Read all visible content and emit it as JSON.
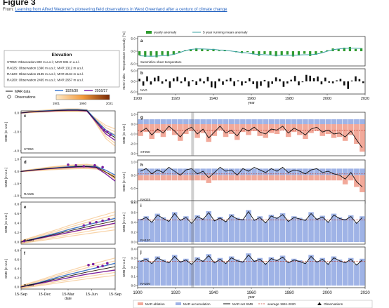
{
  "page": {
    "figure_title": "Figure 3",
    "from_prefix": "From:",
    "from_link": "Learning from Alfred Wegener's pioneering field observations in West Greenland after a century of climate change"
  },
  "elevation_box": {
    "title": "Elevation",
    "lines": [
      "ST050: Observation 800 m a.s.l.; MAR 931 m a.s.l.",
      "RA025: Observation 1390 m a.s.l.; MAR 1312 m a.s.l.",
      "RA120: Observation 2135 m a.s.l.; MAR 2134 m a.s.l.",
      "RA200: Observation 2465 m a.s.l.; MAR 2657 m a.s.l."
    ]
  },
  "left_legend": {
    "mar_label": "MAR data",
    "obs_label": "Observations",
    "period1": "1929/30",
    "period2": "2016/17",
    "cbar_ticks": [
      "1901",
      "1960",
      "2021"
    ]
  },
  "bottom_legend": {
    "ablation": "MAR ablation",
    "accumulation": "MAR accumulation",
    "net_smb": "MAR net SMB",
    "average": "average 1991-2020",
    "observations": "Observations"
  },
  "colors": {
    "green": "#2e9b2e",
    "black": "#111111",
    "red_fill": "#f2a99a",
    "blue_fill": "#9fb3e6",
    "orange": "#f0a040",
    "purple": "#7a1fa0",
    "blue_line": "#3a78d0"
  },
  "chart_data": [
    {
      "panel": "a",
      "type": "bar",
      "ylabel": "Temperature Anomaly [°C]",
      "legend": [
        "yearly anomaly",
        "5 year running mean anomaly"
      ],
      "annotation": "Summit/ice sheet temperature",
      "xlim": [
        1900,
        2020
      ],
      "ylim": [
        -5.0,
        5.0
      ],
      "yticks": [
        "5.0",
        "0.0",
        "-5.0"
      ],
      "x": [
        1901,
        1904,
        1907,
        1910,
        1913,
        1916,
        1919,
        1922,
        1925,
        1928,
        1931,
        1934,
        1937,
        1940,
        1943,
        1946,
        1949,
        1952,
        1955,
        1958,
        1961,
        1964,
        1967,
        1970,
        1973,
        1976,
        1979,
        1982,
        1985,
        1988,
        1991,
        1994,
        1997,
        2000,
        2003,
        2006,
        2009,
        2012,
        2015,
        2018
      ],
      "values": [
        -1.6,
        -2.2,
        -1.8,
        -2.4,
        -1.5,
        -2.0,
        -1.4,
        -0.6,
        0.4,
        0.8,
        1.2,
        1.0,
        0.6,
        0.9,
        0.3,
        0.5,
        0.2,
        -0.4,
        -0.8,
        -0.3,
        -1.2,
        -1.8,
        -1.1,
        -1.5,
        -2.0,
        -1.6,
        -1.3,
        -2.1,
        -1.7,
        -1.0,
        -1.9,
        -1.4,
        -0.5,
        0.4,
        1.1,
        0.9,
        1.4,
        1.7,
        0.9,
        1.2
      ],
      "running_mean": [
        -1.8,
        -1.9,
        -2.0,
        -1.9,
        -1.8,
        -1.6,
        -1.3,
        -0.6,
        0.2,
        0.7,
        0.9,
        0.9,
        0.8,
        0.7,
        0.5,
        0.4,
        0.1,
        -0.2,
        -0.5,
        -0.7,
        -1.1,
        -1.3,
        -1.4,
        -1.5,
        -1.6,
        -1.6,
        -1.6,
        -1.6,
        -1.5,
        -1.4,
        -1.4,
        -1.2,
        -0.7,
        0.0,
        0.6,
        0.9,
        1.1,
        1.2,
        1.2,
        1.1
      ]
    },
    {
      "panel": "b",
      "type": "bar",
      "ylabel": "NAO index",
      "annotation": "NAO",
      "xlim": [
        1900,
        2020
      ],
      "ylim": [
        -5.0,
        5.0
      ],
      "yticks": [
        "5.0",
        "0.0",
        "-5.0"
      ],
      "xticks": [
        "1900",
        "1920",
        "1940",
        "1960",
        "1980",
        "2000",
        "2020"
      ],
      "xlabel": "year",
      "x": [
        1901,
        1903,
        1905,
        1907,
        1909,
        1911,
        1913,
        1915,
        1917,
        1919,
        1921,
        1923,
        1925,
        1927,
        1929,
        1931,
        1933,
        1935,
        1937,
        1939,
        1941,
        1943,
        1945,
        1947,
        1949,
        1951,
        1953,
        1955,
        1957,
        1959,
        1961,
        1963,
        1965,
        1967,
        1969,
        1971,
        1973,
        1975,
        1977,
        1979,
        1981,
        1983,
        1985,
        1987,
        1989,
        1991,
        1993,
        1995,
        1997,
        1999,
        2001,
        2003,
        2005,
        2007,
        2009,
        2011,
        2013,
        2015,
        2017,
        2019
      ],
      "values": [
        1.2,
        -2.0,
        2.4,
        -1.5,
        1.8,
        2.6,
        -1.1,
        0.9,
        -3.0,
        1.5,
        2.2,
        -0.8,
        1.9,
        -2.4,
        0.6,
        -1.7,
        1.4,
        -0.9,
        2.1,
        -2.8,
        -3.2,
        1.3,
        -1.6,
        0.8,
        1.7,
        -2.2,
        0.5,
        -1.9,
        -0.7,
        1.6,
        -1.3,
        -3.4,
        -2.1,
        0.7,
        -2.9,
        -1.2,
        1.9,
        1.1,
        -2.6,
        -1.0,
        0.8,
        2.6,
        -1.8,
        -0.4,
        3.1,
        2.7,
        1.6,
        2.3,
        -1.4,
        1.8,
        -0.6,
        -0.9,
        0.5,
        1.2,
        -1.9,
        -3.6,
        0.4,
        2.4,
        1.1,
        -0.8
      ]
    },
    {
      "panel": "c",
      "type": "line",
      "station": "ST050",
      "ylabel": "SMB [m w.e.]",
      "ylim": [
        -4.0,
        0.0
      ],
      "yticks": [
        "0.0",
        "-2.0",
        "-4.0"
      ],
      "days": [
        0,
        30,
        60,
        90,
        120,
        150,
        180,
        210,
        240,
        270,
        300
      ],
      "series": [
        {
          "name": "1929/30",
          "values": [
            0,
            0.1,
            0.2,
            0.25,
            0.3,
            0.35,
            0.35,
            0.3,
            -0.8,
            -1.8,
            -2.4
          ]
        },
        {
          "name": "2016/17",
          "values": [
            0,
            0.1,
            0.15,
            0.2,
            0.25,
            0.28,
            0.28,
            0.2,
            -1.0,
            -2.2,
            -2.9
          ]
        },
        {
          "name": "MAR data",
          "values": [
            0,
            0.1,
            0.18,
            0.22,
            0.27,
            0.3,
            0.3,
            0.25,
            -0.9,
            -2.0,
            -2.6
          ]
        }
      ],
      "observations": [
        [
          255,
          -1.5
        ],
        [
          265,
          -1.8
        ],
        [
          275,
          -2.0
        ],
        [
          285,
          -2.3
        ]
      ]
    },
    {
      "panel": "d",
      "type": "line",
      "station": "RA025",
      "ylabel": "SMB [m w.e.]",
      "ylim": [
        -2.0,
        1.0
      ],
      "yticks": [
        "1.0",
        "0.0",
        "-1.0",
        "-2.0"
      ],
      "days": [
        0,
        30,
        60,
        90,
        120,
        150,
        180,
        210,
        240,
        270,
        300
      ],
      "series": [
        {
          "name": "1929/30",
          "values": [
            0,
            0.1,
            0.18,
            0.25,
            0.32,
            0.38,
            0.42,
            0.44,
            0.4,
            0.1,
            -0.3
          ]
        },
        {
          "name": "2016/17",
          "values": [
            0,
            0.08,
            0.15,
            0.22,
            0.28,
            0.32,
            0.36,
            0.38,
            0.3,
            -0.2,
            -0.8
          ]
        },
        {
          "name": "MAR data",
          "values": [
            0,
            0.09,
            0.17,
            0.24,
            0.3,
            0.35,
            0.39,
            0.41,
            0.35,
            -0.05,
            -0.5
          ]
        }
      ],
      "observations": [
        [
          150,
          0.55
        ],
        [
          175,
          0.5
        ],
        [
          200,
          0.42
        ],
        [
          235,
          0.5
        ],
        [
          260,
          0.35
        ]
      ]
    },
    {
      "panel": "e",
      "type": "line",
      "station": "RA120",
      "ylabel": "SMB [m w.e.]",
      "ylim": [
        0.0,
        0.8
      ],
      "yticks": [
        "0.8",
        "0.6",
        "0.4",
        "0.2",
        "0.0"
      ],
      "days": [
        0,
        30,
        60,
        90,
        120,
        150,
        180,
        210,
        240,
        270,
        300
      ],
      "series": [
        {
          "name": "1929/30",
          "values": [
            0,
            0.05,
            0.1,
            0.15,
            0.2,
            0.26,
            0.31,
            0.36,
            0.41,
            0.45,
            0.5
          ]
        },
        {
          "name": "2016/17",
          "values": [
            0,
            0.04,
            0.08,
            0.12,
            0.16,
            0.2,
            0.24,
            0.28,
            0.32,
            0.36,
            0.4
          ]
        },
        {
          "name": "MAR data",
          "values": [
            0,
            0.045,
            0.09,
            0.135,
            0.18,
            0.23,
            0.275,
            0.32,
            0.365,
            0.405,
            0.45
          ]
        }
      ],
      "observations": [
        [
          10,
          0.02
        ],
        [
          200,
          0.35
        ],
        [
          220,
          0.4
        ],
        [
          240,
          0.42
        ],
        [
          260,
          0.45
        ],
        [
          280,
          0.48
        ]
      ]
    },
    {
      "panel": "f",
      "type": "line",
      "station": "RA200",
      "ylabel": "SMB [m w.e.]",
      "ylim": [
        0.0,
        0.8
      ],
      "yticks": [
        "0.8",
        "0.6",
        "0.4",
        "0.2",
        "0.0"
      ],
      "xticks": [
        "15-Sep",
        "15-Dec",
        "15-Mar",
        "15-Jun",
        "15-Sep"
      ],
      "xlabel": "date",
      "days": [
        0,
        30,
        60,
        90,
        120,
        150,
        180,
        210,
        240,
        270,
        300
      ],
      "series": [
        {
          "name": "1929/30",
          "values": [
            0,
            0.05,
            0.1,
            0.16,
            0.22,
            0.27,
            0.32,
            0.37,
            0.42,
            0.47,
            0.52
          ]
        },
        {
          "name": "2016/17",
          "values": [
            0,
            0.04,
            0.08,
            0.12,
            0.16,
            0.2,
            0.24,
            0.28,
            0.31,
            0.34,
            0.37
          ]
        },
        {
          "name": "MAR data",
          "values": [
            0,
            0.045,
            0.09,
            0.14,
            0.19,
            0.235,
            0.28,
            0.325,
            0.365,
            0.405,
            0.445
          ]
        }
      ],
      "observations": [
        [
          215,
          0.48
        ],
        [
          230,
          0.5
        ],
        [
          245,
          0.44
        ],
        [
          260,
          0.46
        ],
        [
          275,
          0.52
        ]
      ]
    },
    {
      "panel": "g",
      "type": "bar",
      "station": "ST050",
      "ylabel": "SMB [m w.e.]",
      "xlim": [
        1900,
        2020
      ],
      "ylim": [
        -3.0,
        1.0
      ],
      "yticks": [
        "1.0",
        "0.0",
        "-1.0",
        "-2.0",
        "-3.0"
      ],
      "average": -0.6,
      "net": [
        -0.8,
        -0.4,
        -1.1,
        -0.5,
        -0.9,
        -0.2,
        -0.7,
        -1.3,
        -0.6,
        -0.3,
        -1.0,
        -0.5,
        -1.4,
        -0.8,
        -0.2,
        -0.9,
        -0.6,
        -1.2,
        -0.4,
        -0.7,
        -0.3,
        -0.8,
        -1.0,
        -0.5,
        -0.6,
        -0.2,
        -0.9,
        -0.4,
        -0.7,
        -1.1,
        -0.5,
        -0.3,
        -0.8,
        -0.6,
        -1.0,
        -0.9,
        -1.3,
        -0.7,
        -1.6,
        -2.4
      ]
    },
    {
      "panel": "h",
      "type": "bar",
      "station": "RA025",
      "ylabel": "SMB [m w.e.]",
      "xlim": [
        1900,
        2020
      ],
      "ylim": [
        -2.0,
        1.0
      ],
      "yticks": [
        "1.0",
        "0.0",
        "-1.0",
        "-2.0"
      ],
      "average": 0.1,
      "net": [
        0.3,
        0.5,
        0.1,
        0.4,
        0.2,
        0.6,
        0.3,
        0.0,
        0.4,
        0.5,
        0.1,
        0.3,
        -0.2,
        0.2,
        0.6,
        0.3,
        0.4,
        0.0,
        0.5,
        0.3,
        0.6,
        0.4,
        0.2,
        0.5,
        0.3,
        0.6,
        0.2,
        0.4,
        0.3,
        0.1,
        0.4,
        0.5,
        0.2,
        0.3,
        0.1,
        0.0,
        -0.3,
        0.2,
        -0.5,
        -0.9
      ]
    },
    {
      "panel": "i",
      "type": "bar",
      "station": "RA120",
      "ylabel": "SMB [m w.e.]",
      "xlim": [
        1900,
        2020
      ],
      "ylim": [
        0.0,
        0.8
      ],
      "yticks": [
        "0.8",
        "0.6",
        "0.4",
        "0.2",
        "0.0"
      ],
      "average": 0.45,
      "net": [
        0.45,
        0.5,
        0.4,
        0.55,
        0.48,
        0.42,
        0.58,
        0.44,
        0.5,
        0.38,
        0.52,
        0.46,
        0.6,
        0.43,
        0.49,
        0.41,
        0.54,
        0.47,
        0.45,
        0.62,
        0.44,
        0.5,
        0.39,
        0.53,
        0.48,
        0.56,
        0.42,
        0.5,
        0.47,
        0.44,
        0.58,
        0.46,
        0.51,
        0.4,
        0.55,
        0.48,
        0.45,
        0.52,
        0.38,
        0.5
      ]
    },
    {
      "panel": "j",
      "type": "bar",
      "station": "RA200",
      "ylabel": "SMB [m w.e.]",
      "xlim": [
        1900,
        2020
      ],
      "ylim": [
        0.0,
        0.5
      ],
      "yticks": [
        "0.4",
        "0.3",
        "0.2",
        "0.1",
        "0.0"
      ],
      "xticks": [
        "1900",
        "1920",
        "1940",
        "1960",
        "1980",
        "2000",
        "2020"
      ],
      "xlabel": "year",
      "average": 0.33,
      "net": [
        0.33,
        0.36,
        0.3,
        0.38,
        0.34,
        0.31,
        0.4,
        0.32,
        0.35,
        0.29,
        0.37,
        0.33,
        0.41,
        0.31,
        0.36,
        0.3,
        0.38,
        0.34,
        0.32,
        0.42,
        0.33,
        0.36,
        0.29,
        0.37,
        0.34,
        0.39,
        0.31,
        0.35,
        0.33,
        0.3,
        0.4,
        0.32,
        0.36,
        0.29,
        0.38,
        0.34,
        0.31,
        0.36,
        0.28,
        0.35
      ]
    }
  ]
}
